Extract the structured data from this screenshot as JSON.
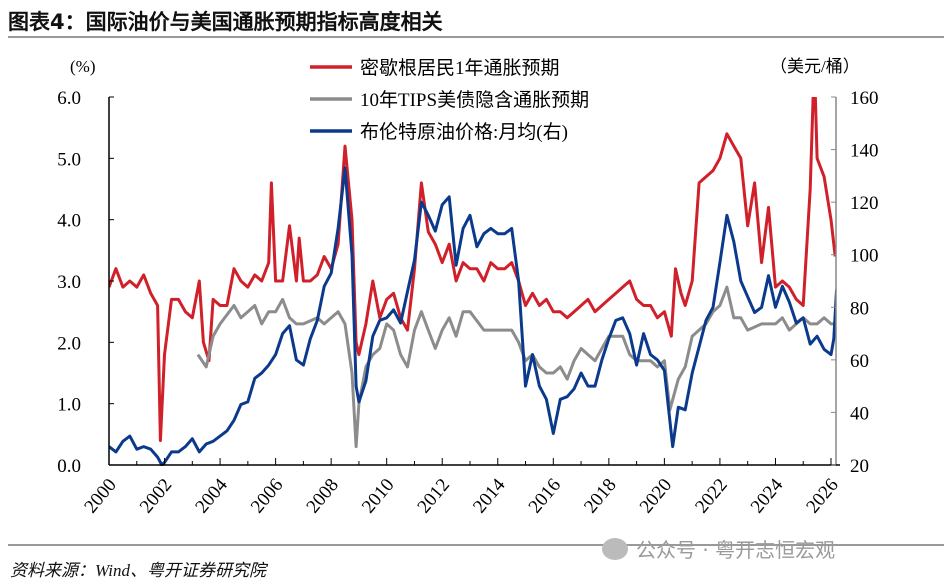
{
  "title": "图表4：国际油价与美国通胀预期指标高度相关",
  "source": "资料来源：Wind、粤开证券研究院",
  "watermark": "公众号 · 粤开志恒宏观",
  "chart_data": {
    "type": "line",
    "title": "图表4：国际油价与美国通胀预期指标高度相关",
    "ylabel": "(%)",
    "y2label": "（美元/桶）",
    "xlim": [
      2000,
      2026.25
    ],
    "ylim": [
      0,
      6
    ],
    "y2lim": [
      20,
      160
    ],
    "xticks": [
      "2000",
      "2002",
      "2004",
      "2006",
      "2008",
      "2010",
      "2012",
      "2014",
      "2016",
      "2018",
      "2020",
      "2022",
      "2024",
      "2026"
    ],
    "yticks": [
      "0.0",
      "1.0",
      "2.0",
      "3.0",
      "4.0",
      "5.0",
      "6.0"
    ],
    "y2ticks": [
      "20",
      "40",
      "60",
      "80",
      "100",
      "120",
      "140",
      "160"
    ],
    "legend_position": "top-center",
    "series": [
      {
        "name": "密歇根居民1年通胀预期",
        "axis": "left",
        "color": "#d0202a",
        "points": [
          [
            2000,
            2.9
          ],
          [
            2000.25,
            3.2
          ],
          [
            2000.5,
            2.9
          ],
          [
            2000.75,
            3.0
          ],
          [
            2001,
            2.9
          ],
          [
            2001.25,
            3.1
          ],
          [
            2001.5,
            2.8
          ],
          [
            2001.75,
            2.6
          ],
          [
            2001.85,
            0.4
          ],
          [
            2002,
            1.8
          ],
          [
            2002.25,
            2.7
          ],
          [
            2002.5,
            2.7
          ],
          [
            2002.75,
            2.5
          ],
          [
            2003,
            2.4
          ],
          [
            2003.25,
            3.0
          ],
          [
            2003.4,
            2.0
          ],
          [
            2003.6,
            1.7
          ],
          [
            2003.75,
            2.7
          ],
          [
            2004,
            2.6
          ],
          [
            2004.25,
            2.6
          ],
          [
            2004.5,
            3.2
          ],
          [
            2004.75,
            3.0
          ],
          [
            2005,
            2.9
          ],
          [
            2005.25,
            3.1
          ],
          [
            2005.5,
            3.0
          ],
          [
            2005.75,
            3.3
          ],
          [
            2005.85,
            4.6
          ],
          [
            2006,
            3.0
          ],
          [
            2006.25,
            3.0
          ],
          [
            2006.5,
            3.9
          ],
          [
            2006.75,
            3.0
          ],
          [
            2006.85,
            3.7
          ],
          [
            2007,
            3.0
          ],
          [
            2007.25,
            3.0
          ],
          [
            2007.5,
            3.1
          ],
          [
            2007.75,
            3.4
          ],
          [
            2008,
            3.2
          ],
          [
            2008.25,
            3.6
          ],
          [
            2008.5,
            5.2
          ],
          [
            2008.75,
            4.0
          ],
          [
            2008.9,
            2.0
          ],
          [
            2009,
            1.8
          ],
          [
            2009.25,
            2.3
          ],
          [
            2009.5,
            3.0
          ],
          [
            2009.75,
            2.4
          ],
          [
            2010,
            2.7
          ],
          [
            2010.25,
            2.8
          ],
          [
            2010.5,
            2.4
          ],
          [
            2010.75,
            2.2
          ],
          [
            2011,
            3.2
          ],
          [
            2011.25,
            4.6
          ],
          [
            2011.5,
            3.8
          ],
          [
            2011.75,
            3.6
          ],
          [
            2012,
            3.3
          ],
          [
            2012.25,
            3.6
          ],
          [
            2012.5,
            3.0
          ],
          [
            2012.75,
            3.3
          ],
          [
            2013,
            3.2
          ],
          [
            2013.25,
            3.2
          ],
          [
            2013.5,
            3.0
          ],
          [
            2013.75,
            3.3
          ],
          [
            2014,
            3.2
          ],
          [
            2014.25,
            3.2
          ],
          [
            2014.5,
            3.3
          ],
          [
            2014.75,
            3.0
          ],
          [
            2015,
            2.6
          ],
          [
            2015.25,
            2.8
          ],
          [
            2015.5,
            2.6
          ],
          [
            2015.75,
            2.7
          ],
          [
            2016,
            2.5
          ],
          [
            2016.25,
            2.5
          ],
          [
            2016.5,
            2.4
          ],
          [
            2016.75,
            2.5
          ],
          [
            2017,
            2.6
          ],
          [
            2017.25,
            2.7
          ],
          [
            2017.5,
            2.5
          ],
          [
            2017.75,
            2.6
          ],
          [
            2018,
            2.7
          ],
          [
            2018.25,
            2.8
          ],
          [
            2018.5,
            2.9
          ],
          [
            2018.75,
            3.0
          ],
          [
            2019,
            2.7
          ],
          [
            2019.25,
            2.6
          ],
          [
            2019.5,
            2.6
          ],
          [
            2019.75,
            2.4
          ],
          [
            2020,
            2.5
          ],
          [
            2020.25,
            2.1
          ],
          [
            2020.4,
            3.2
          ],
          [
            2020.6,
            2.8
          ],
          [
            2020.75,
            2.6
          ],
          [
            2021,
            3.0
          ],
          [
            2021.25,
            4.6
          ],
          [
            2021.5,
            4.7
          ],
          [
            2021.75,
            4.8
          ],
          [
            2022,
            5.0
          ],
          [
            2022.25,
            5.4
          ],
          [
            2022.5,
            5.2
          ],
          [
            2022.75,
            5.0
          ],
          [
            2023,
            3.9
          ],
          [
            2023.25,
            4.6
          ],
          [
            2023.5,
            3.3
          ],
          [
            2023.75,
            4.2
          ],
          [
            2024,
            2.9
          ],
          [
            2024.25,
            3.0
          ],
          [
            2024.5,
            2.9
          ],
          [
            2024.75,
            2.7
          ],
          [
            2025,
            2.6
          ],
          [
            2025.25,
            4.5
          ],
          [
            2025.4,
            6.6
          ],
          [
            2025.5,
            5.0
          ],
          [
            2025.75,
            4.7
          ],
          [
            2026,
            4.0
          ],
          [
            2026.15,
            3.4
          ]
        ]
      },
      {
        "name": "10年TIPS美债隐含通胀预期",
        "axis": "left",
        "color": "#8c8c8c",
        "points": [
          [
            2003.2,
            1.8
          ],
          [
            2003.5,
            1.6
          ],
          [
            2003.75,
            2.1
          ],
          [
            2004,
            2.3
          ],
          [
            2004.5,
            2.6
          ],
          [
            2004.75,
            2.4
          ],
          [
            2005,
            2.5
          ],
          [
            2005.25,
            2.6
          ],
          [
            2005.5,
            2.3
          ],
          [
            2005.75,
            2.5
          ],
          [
            2006,
            2.5
          ],
          [
            2006.25,
            2.7
          ],
          [
            2006.5,
            2.4
          ],
          [
            2006.75,
            2.3
          ],
          [
            2007,
            2.3
          ],
          [
            2007.5,
            2.4
          ],
          [
            2007.75,
            2.3
          ],
          [
            2008,
            2.4
          ],
          [
            2008.25,
            2.5
          ],
          [
            2008.5,
            2.3
          ],
          [
            2008.75,
            1.5
          ],
          [
            2008.9,
            0.3
          ],
          [
            2009,
            1.0
          ],
          [
            2009.25,
            1.6
          ],
          [
            2009.5,
            1.8
          ],
          [
            2009.75,
            1.9
          ],
          [
            2010,
            2.3
          ],
          [
            2010.25,
            2.2
          ],
          [
            2010.5,
            1.8
          ],
          [
            2010.75,
            1.6
          ],
          [
            2011,
            2.2
          ],
          [
            2011.25,
            2.5
          ],
          [
            2011.5,
            2.2
          ],
          [
            2011.75,
            1.9
          ],
          [
            2012,
            2.2
          ],
          [
            2012.25,
            2.4
          ],
          [
            2012.5,
            2.1
          ],
          [
            2012.75,
            2.5
          ],
          [
            2013,
            2.5
          ],
          [
            2013.5,
            2.2
          ],
          [
            2014,
            2.2
          ],
          [
            2014.5,
            2.2
          ],
          [
            2014.75,
            2.0
          ],
          [
            2015,
            1.7
          ],
          [
            2015.25,
            1.8
          ],
          [
            2015.5,
            1.6
          ],
          [
            2015.75,
            1.5
          ],
          [
            2016,
            1.5
          ],
          [
            2016.25,
            1.6
          ],
          [
            2016.5,
            1.4
          ],
          [
            2016.75,
            1.7
          ],
          [
            2017,
            1.9
          ],
          [
            2017.25,
            1.8
          ],
          [
            2017.5,
            1.7
          ],
          [
            2017.75,
            1.9
          ],
          [
            2018,
            2.1
          ],
          [
            2018.5,
            2.1
          ],
          [
            2018.75,
            1.8
          ],
          [
            2019,
            1.7
          ],
          [
            2019.5,
            1.7
          ],
          [
            2019.75,
            1.6
          ],
          [
            2020,
            1.7
          ],
          [
            2020.2,
            0.9
          ],
          [
            2020.5,
            1.4
          ],
          [
            2020.75,
            1.6
          ],
          [
            2021,
            2.1
          ],
          [
            2021.5,
            2.3
          ],
          [
            2021.75,
            2.5
          ],
          [
            2022,
            2.6
          ],
          [
            2022.25,
            2.9
          ],
          [
            2022.5,
            2.4
          ],
          [
            2022.75,
            2.4
          ],
          [
            2023,
            2.2
          ],
          [
            2023.5,
            2.3
          ],
          [
            2024,
            2.3
          ],
          [
            2024.25,
            2.4
          ],
          [
            2024.5,
            2.2
          ],
          [
            2024.75,
            2.3
          ],
          [
            2025,
            2.4
          ],
          [
            2025.25,
            2.3
          ],
          [
            2025.5,
            2.3
          ],
          [
            2025.75,
            2.4
          ],
          [
            2026,
            2.3
          ],
          [
            2026.1,
            2.3
          ]
        ]
      },
      {
        "name": "布伦特原油价格:月均(右)",
        "axis": "right",
        "color": "#0b3a8c",
        "points": [
          [
            2000,
            27
          ],
          [
            2000.25,
            25
          ],
          [
            2000.5,
            29
          ],
          [
            2000.75,
            31
          ],
          [
            2001,
            26
          ],
          [
            2001.25,
            27
          ],
          [
            2001.5,
            26
          ],
          [
            2001.75,
            23
          ],
          [
            2001.9,
            20
          ],
          [
            2002,
            21
          ],
          [
            2002.25,
            25
          ],
          [
            2002.5,
            25
          ],
          [
            2002.75,
            27
          ],
          [
            2003,
            30
          ],
          [
            2003.25,
            25
          ],
          [
            2003.5,
            28
          ],
          [
            2003.75,
            29
          ],
          [
            2004,
            31
          ],
          [
            2004.25,
            33
          ],
          [
            2004.5,
            37
          ],
          [
            2004.75,
            43
          ],
          [
            2005,
            44
          ],
          [
            2005.25,
            53
          ],
          [
            2005.5,
            55
          ],
          [
            2005.75,
            58
          ],
          [
            2006,
            62
          ],
          [
            2006.25,
            70
          ],
          [
            2006.5,
            73
          ],
          [
            2006.75,
            60
          ],
          [
            2007,
            58
          ],
          [
            2007.25,
            68
          ],
          [
            2007.5,
            75
          ],
          [
            2007.75,
            88
          ],
          [
            2008,
            93
          ],
          [
            2008.25,
            110
          ],
          [
            2008.5,
            133
          ],
          [
            2008.75,
            100
          ],
          [
            2008.9,
            50
          ],
          [
            2009,
            44
          ],
          [
            2009.25,
            52
          ],
          [
            2009.5,
            69
          ],
          [
            2009.75,
            75
          ],
          [
            2010,
            76
          ],
          [
            2010.25,
            79
          ],
          [
            2010.5,
            74
          ],
          [
            2010.75,
            86
          ],
          [
            2011,
            98
          ],
          [
            2011.25,
            120
          ],
          [
            2011.5,
            115
          ],
          [
            2011.75,
            109
          ],
          [
            2012,
            119
          ],
          [
            2012.25,
            122
          ],
          [
            2012.5,
            96
          ],
          [
            2012.75,
            110
          ],
          [
            2013,
            115
          ],
          [
            2013.25,
            103
          ],
          [
            2013.5,
            108
          ],
          [
            2013.75,
            110
          ],
          [
            2014,
            108
          ],
          [
            2014.25,
            108
          ],
          [
            2014.5,
            110
          ],
          [
            2014.75,
            90
          ],
          [
            2015,
            50
          ],
          [
            2015.25,
            62
          ],
          [
            2015.5,
            50
          ],
          [
            2015.75,
            45
          ],
          [
            2016,
            32
          ],
          [
            2016.25,
            45
          ],
          [
            2016.5,
            46
          ],
          [
            2016.75,
            49
          ],
          [
            2017,
            55
          ],
          [
            2017.25,
            50
          ],
          [
            2017.5,
            50
          ],
          [
            2017.75,
            60
          ],
          [
            2018,
            68
          ],
          [
            2018.25,
            75
          ],
          [
            2018.5,
            76
          ],
          [
            2018.75,
            70
          ],
          [
            2019,
            58
          ],
          [
            2019.25,
            70
          ],
          [
            2019.5,
            62
          ],
          [
            2019.75,
            60
          ],
          [
            2020,
            56
          ],
          [
            2020.3,
            27
          ],
          [
            2020.5,
            42
          ],
          [
            2020.75,
            41
          ],
          [
            2021,
            55
          ],
          [
            2021.25,
            65
          ],
          [
            2021.5,
            75
          ],
          [
            2021.75,
            80
          ],
          [
            2022,
            97
          ],
          [
            2022.25,
            115
          ],
          [
            2022.5,
            105
          ],
          [
            2022.75,
            90
          ],
          [
            2023,
            84
          ],
          [
            2023.25,
            78
          ],
          [
            2023.5,
            80
          ],
          [
            2023.75,
            92
          ],
          [
            2024,
            80
          ],
          [
            2024.25,
            88
          ],
          [
            2024.5,
            82
          ],
          [
            2024.75,
            74
          ],
          [
            2025,
            76
          ],
          [
            2025.25,
            66
          ],
          [
            2025.5,
            69
          ],
          [
            2025.75,
            64
          ],
          [
            2026,
            62
          ],
          [
            2026.1,
            68
          ],
          [
            2026.2,
            87
          ]
        ]
      }
    ]
  }
}
